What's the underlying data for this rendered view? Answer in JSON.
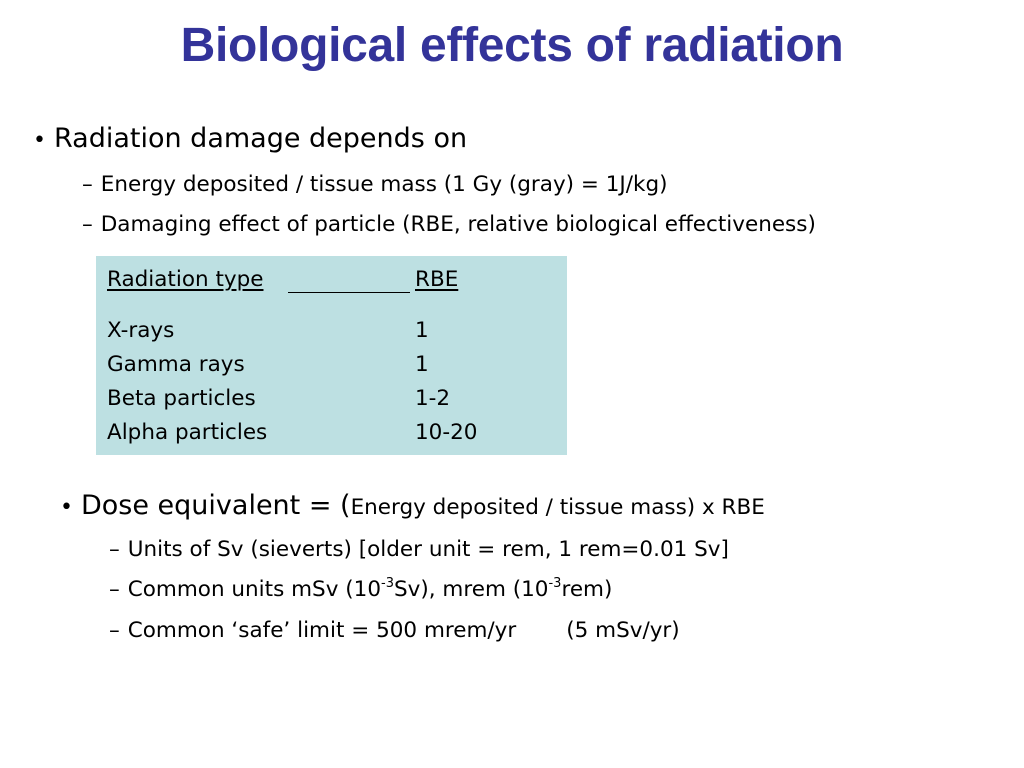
{
  "slide": {
    "title": "Biological effects of radiation",
    "section1": {
      "bullet": "•",
      "heading": "Radiation damage depends on",
      "subitems": [
        "Energy deposited / tissue mass (1 Gy (gray) = 1J/kg)",
        "Damaging effect of particle (RBE, relative biological effectiveness)"
      ]
    },
    "table": {
      "headers": [
        "Radiation type",
        "RBE"
      ],
      "rows": [
        [
          "X-rays",
          "1"
        ],
        [
          "Gamma rays",
          "1"
        ],
        [
          "Beta particles",
          "1-2"
        ],
        [
          "Alpha particles",
          "10-20"
        ]
      ]
    },
    "section2": {
      "bullet": "•",
      "heading_main": "Dose equivalent = (",
      "heading_rest": "Energy deposited / tissue mass) x RBE",
      "sub1": "Units of Sv (sieverts) [older unit = rem, 1 rem=0.01 Sv]",
      "sub2": {
        "a": "Common units mSv (10",
        "exp1": "-3",
        "b": "Sv), mrem (10",
        "exp2": "-3",
        "c": "rem)"
      },
      "sub3": {
        "a": "Common ‘safe’ limit = 500 mrem/yr",
        "b": "(5 mSv/yr)"
      }
    },
    "dash": "–"
  }
}
